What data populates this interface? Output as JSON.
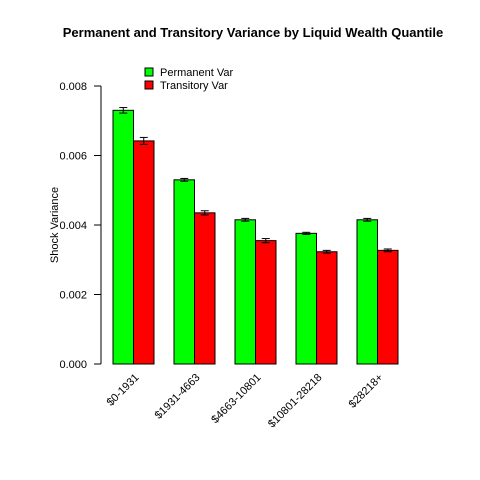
{
  "chart_data": {
    "type": "bar",
    "title": "Permanent and Transitory Variance by  Liquid Wealth Quantile",
    "xlabel": "",
    "ylabel": "Shock Variance",
    "ylim": [
      0,
      0.008
    ],
    "yticks": [
      "0.000",
      "0.002",
      "0.004",
      "0.006",
      "0.008"
    ],
    "categories": [
      "$0-1931",
      "$1931-4663",
      "$4663-10801",
      "$10801-28218",
      "$28218+"
    ],
    "series": [
      {
        "name": "Permanent Var",
        "color": "#00ff00",
        "values": [
          0.0073,
          0.0053,
          0.00415,
          0.00376,
          0.00415
        ],
        "errors": [
          8e-05,
          4e-05,
          4e-05,
          3e-05,
          4e-05
        ]
      },
      {
        "name": "Transitory Var",
        "color": "#ff0000",
        "values": [
          0.00642,
          0.00435,
          0.00355,
          0.00323,
          0.00327
        ],
        "errors": [
          0.0001,
          6e-05,
          6e-05,
          4e-05,
          4e-05
        ]
      }
    ],
    "legend_position": "top-left",
    "grid": false
  }
}
